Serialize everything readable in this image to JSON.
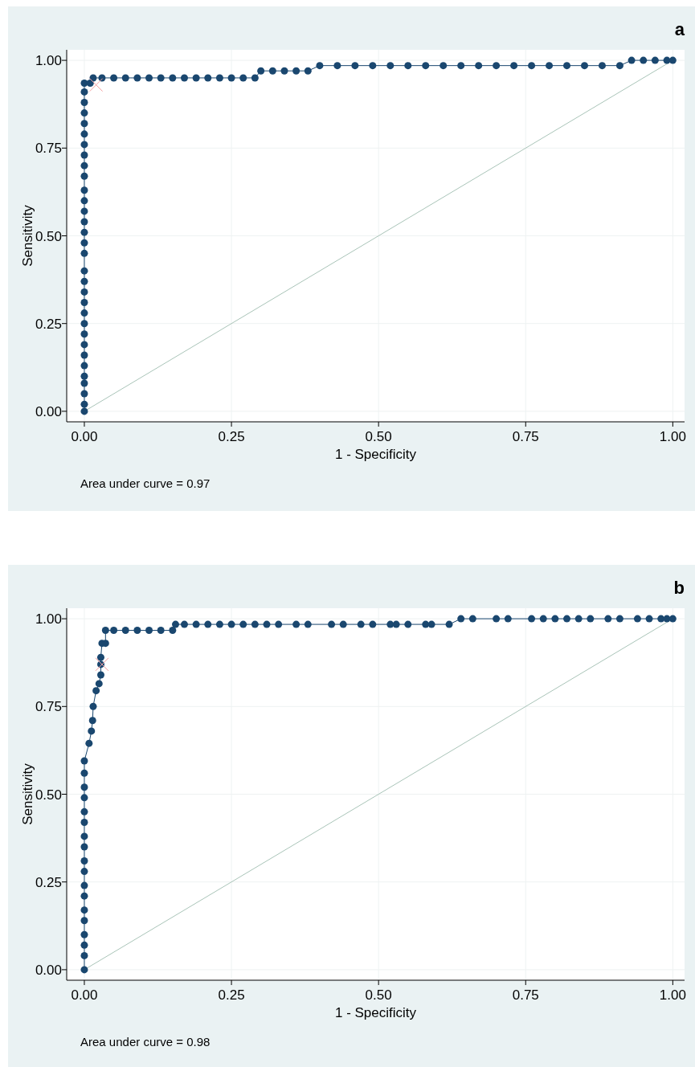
{
  "chart_data": [
    {
      "type": "line",
      "title": "a",
      "xlabel": "1 - Specificity",
      "ylabel": "Sensitivity",
      "annotations": [
        "Area under curve = 0.97"
      ],
      "xlim": [
        -0.03,
        1.02
      ],
      "ylim": [
        -0.03,
        1.03
      ],
      "xticks": [
        {
          "value": 0,
          "label": "0.00"
        },
        {
          "value": 0.25,
          "label": "0.25"
        },
        {
          "value": 0.5,
          "label": "0.50"
        },
        {
          "value": 0.75,
          "label": "0.75"
        },
        {
          "value": 1,
          "label": "1.00"
        }
      ],
      "yticks": [
        {
          "value": 0,
          "label": "0.00"
        },
        {
          "value": 0.25,
          "label": "0.25"
        },
        {
          "value": 0.5,
          "label": "0.50"
        },
        {
          "value": 0.75,
          "label": "0.75"
        },
        {
          "value": 1,
          "label": "1.00"
        }
      ],
      "grid": true,
      "series": [
        {
          "type": "line",
          "color": "#a9c4b8",
          "marker": "none",
          "x": [
            0,
            1
          ],
          "values": [
            0,
            1
          ]
        },
        {
          "type": "line",
          "color": "#1a476f",
          "marker": "circle",
          "x": [
            0,
            0,
            0,
            0,
            0,
            0,
            0,
            0,
            0,
            0,
            0,
            0,
            0,
            0,
            0,
            0,
            0,
            0,
            0,
            0,
            0,
            0,
            0,
            0,
            0,
            0,
            0,
            0,
            0,
            0,
            0,
            0,
            0.01,
            0.015,
            0.03,
            0.05,
            0.07,
            0.09,
            0.11,
            0.13,
            0.15,
            0.17,
            0.19,
            0.21,
            0.23,
            0.25,
            0.27,
            0.29,
            0.3,
            0.32,
            0.34,
            0.36,
            0.38,
            0.4,
            0.43,
            0.46,
            0.49,
            0.52,
            0.55,
            0.58,
            0.61,
            0.64,
            0.67,
            0.7,
            0.73,
            0.76,
            0.79,
            0.82,
            0.85,
            0.88,
            0.91,
            0.93,
            0.95,
            0.97,
            0.99,
            1
          ],
          "values": [
            0,
            0.02,
            0.05,
            0.08,
            0.1,
            0.13,
            0.16,
            0.19,
            0.22,
            0.25,
            0.28,
            0.31,
            0.34,
            0.37,
            0.4,
            0.45,
            0.48,
            0.51,
            0.54,
            0.57,
            0.6,
            0.63,
            0.67,
            0.7,
            0.73,
            0.76,
            0.79,
            0.82,
            0.85,
            0.88,
            0.91,
            0.935,
            0.935,
            0.95,
            0.95,
            0.95,
            0.95,
            0.95,
            0.95,
            0.95,
            0.95,
            0.95,
            0.95,
            0.95,
            0.95,
            0.95,
            0.95,
            0.95,
            0.97,
            0.97,
            0.97,
            0.97,
            0.97,
            0.985,
            0.985,
            0.985,
            0.985,
            0.985,
            0.985,
            0.985,
            0.985,
            0.985,
            0.985,
            0.985,
            0.985,
            0.985,
            0.985,
            0.985,
            0.985,
            0.985,
            0.985,
            1,
            1,
            1,
            1,
            1
          ]
        },
        {
          "type": "scatter",
          "color": "#f4a0a0",
          "marker": "cross",
          "x": [
            0.02
          ],
          "values": [
            0.93
          ]
        }
      ]
    },
    {
      "type": "line",
      "title": "b",
      "xlabel": "1 - Specificity",
      "ylabel": "Sensitivity",
      "annotations": [
        "Area under curve = 0.98"
      ],
      "xlim": [
        -0.03,
        1.02
      ],
      "ylim": [
        -0.03,
        1.03
      ],
      "xticks": [
        {
          "value": 0,
          "label": "0.00"
        },
        {
          "value": 0.25,
          "label": "0.25"
        },
        {
          "value": 0.5,
          "label": "0.50"
        },
        {
          "value": 0.75,
          "label": "0.75"
        },
        {
          "value": 1,
          "label": "1.00"
        }
      ],
      "yticks": [
        {
          "value": 0,
          "label": "0.00"
        },
        {
          "value": 0.25,
          "label": "0.25"
        },
        {
          "value": 0.5,
          "label": "0.50"
        },
        {
          "value": 0.75,
          "label": "0.75"
        },
        {
          "value": 1,
          "label": "1.00"
        }
      ],
      "grid": true,
      "series": [
        {
          "type": "line",
          "color": "#a9c4b8",
          "marker": "none",
          "x": [
            0,
            1
          ],
          "values": [
            0,
            1
          ]
        },
        {
          "type": "line",
          "color": "#1a476f",
          "marker": "circle",
          "x": [
            0,
            0,
            0,
            0,
            0,
            0,
            0,
            0,
            0,
            0,
            0,
            0,
            0,
            0,
            0,
            0,
            0,
            0,
            0.008,
            0.012,
            0.014,
            0.015,
            0.02,
            0.025,
            0.028,
            0.028,
            0.028,
            0.03,
            0.036,
            0.036,
            0.05,
            0.07,
            0.09,
            0.11,
            0.13,
            0.15,
            0.155,
            0.17,
            0.19,
            0.21,
            0.23,
            0.25,
            0.27,
            0.29,
            0.31,
            0.33,
            0.36,
            0.38,
            0.42,
            0.44,
            0.47,
            0.49,
            0.52,
            0.53,
            0.55,
            0.58,
            0.59,
            0.62,
            0.64,
            0.66,
            0.7,
            0.72,
            0.76,
            0.78,
            0.8,
            0.82,
            0.84,
            0.86,
            0.89,
            0.91,
            0.94,
            0.96,
            0.98,
            0.99,
            1
          ],
          "values": [
            0,
            0.04,
            0.07,
            0.1,
            0.14,
            0.17,
            0.21,
            0.24,
            0.28,
            0.31,
            0.35,
            0.38,
            0.42,
            0.45,
            0.49,
            0.52,
            0.56,
            0.595,
            0.645,
            0.68,
            0.71,
            0.75,
            0.795,
            0.815,
            0.84,
            0.87,
            0.89,
            0.93,
            0.93,
            0.967,
            0.967,
            0.967,
            0.967,
            0.967,
            0.967,
            0.967,
            0.984,
            0.984,
            0.984,
            0.984,
            0.984,
            0.984,
            0.984,
            0.984,
            0.984,
            0.984,
            0.984,
            0.984,
            0.984,
            0.984,
            0.984,
            0.984,
            0.984,
            0.984,
            0.984,
            0.984,
            0.984,
            0.984,
            1,
            1,
            1,
            1,
            1,
            1,
            1,
            1,
            1,
            1,
            1,
            1,
            1,
            1,
            1,
            1,
            1
          ]
        },
        {
          "type": "scatter",
          "color": "#f4a0a0",
          "marker": "cross",
          "x": [
            0.03
          ],
          "values": [
            0.87
          ]
        }
      ]
    }
  ]
}
